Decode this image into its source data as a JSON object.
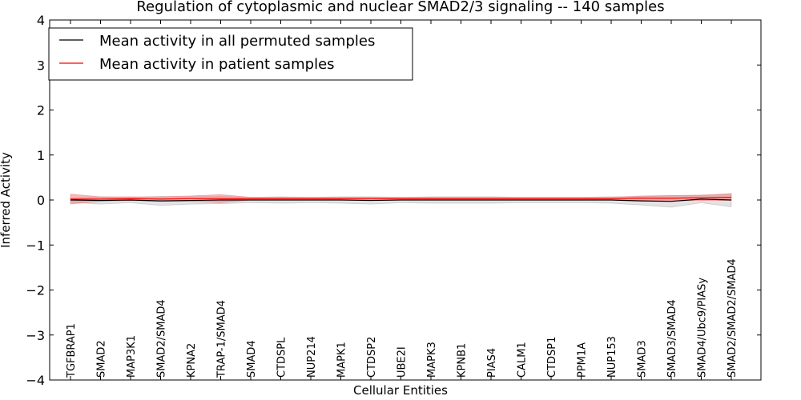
{
  "chart_data": {
    "type": "line",
    "title": "Regulation of cytoplasmic and nuclear SMAD2/3 signaling -- 140 samples",
    "xlabel": "Cellular Entities",
    "ylabel": "Inferred Activity",
    "ylim": [
      -4,
      4
    ],
    "yticks": [
      -4,
      -3,
      -2,
      -1,
      0,
      1,
      2,
      3,
      4
    ],
    "ytick_labels": [
      "−4",
      "−3",
      "−2",
      "−1",
      "0",
      "1",
      "2",
      "3",
      "4"
    ],
    "categories": [
      "TGFBRAP1",
      "SMAD2",
      "MAP3K1",
      "SMAD2/SMAD4",
      "KPNA2",
      "TRAP-1/SMAD4",
      "SMAD4",
      "CTDSPL",
      "NUP214",
      "MAPK1",
      "CTDSP2",
      "UBE2I",
      "MAPK3",
      "KPNB1",
      "PIAS4",
      "CALM1",
      "CTDSP1",
      "PPM1A",
      "NUP153",
      "SMAD3",
      "SMAD3/SMAD4",
      "SMAD4/Ubc9/PIASy",
      "SMAD2/SMAD2/SMAD4"
    ],
    "legend_position": "top-left",
    "series": [
      {
        "name": "Mean activity in all permuted samples",
        "color": "#000000",
        "band_color": "#b0b0b0",
        "values": [
          0.0,
          -0.01,
          0.0,
          -0.02,
          -0.01,
          0.0,
          0.0,
          0.0,
          0.0,
          0.0,
          -0.01,
          0.0,
          0.0,
          0.0,
          0.0,
          0.0,
          0.0,
          0.0,
          0.0,
          -0.02,
          -0.03,
          0.02,
          0.0
        ],
        "band": [
          0.05,
          0.08,
          0.06,
          0.1,
          0.08,
          0.08,
          0.06,
          0.07,
          0.06,
          0.07,
          0.08,
          0.06,
          0.07,
          0.07,
          0.07,
          0.06,
          0.06,
          0.06,
          0.07,
          0.09,
          0.13,
          0.08,
          0.15
        ]
      },
      {
        "name": "Mean activity in patient samples",
        "color": "#ff0000",
        "band_color": "#f08080",
        "values": [
          0.02,
          0.02,
          0.03,
          0.02,
          0.03,
          0.03,
          0.03,
          0.03,
          0.03,
          0.03,
          0.03,
          0.03,
          0.03,
          0.03,
          0.03,
          0.03,
          0.03,
          0.03,
          0.03,
          0.04,
          0.04,
          0.05,
          0.06
        ],
        "band": [
          0.11,
          0.05,
          0.04,
          0.05,
          0.06,
          0.09,
          0.03,
          0.03,
          0.03,
          0.03,
          0.03,
          0.03,
          0.03,
          0.03,
          0.03,
          0.03,
          0.03,
          0.03,
          0.03,
          0.05,
          0.06,
          0.06,
          0.07
        ]
      }
    ]
  }
}
